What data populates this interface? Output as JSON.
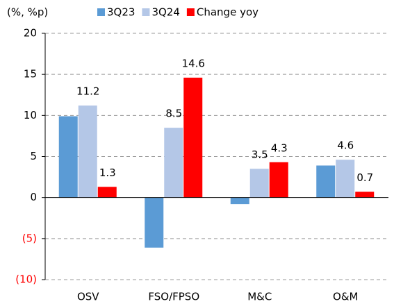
{
  "chart_data": {
    "type": "bar",
    "y_label": "(%, %p)",
    "categories": [
      "OSV",
      "FSO/FPSO",
      "M&C",
      "O&M"
    ],
    "series": [
      {
        "name": "3Q23",
        "color": "#5b9bd5",
        "values": [
          9.9,
          -6.1,
          -0.8,
          3.9
        ],
        "data_labels": false
      },
      {
        "name": "3Q24",
        "color": "#b4c7e7",
        "values": [
          11.2,
          8.5,
          3.5,
          4.6
        ],
        "data_labels": true
      },
      {
        "name": "Change yoy",
        "color": "#ff0000",
        "values": [
          1.3,
          14.6,
          4.3,
          0.7
        ],
        "data_labels": true
      }
    ],
    "ylim": [
      -10,
      20
    ],
    "yticks": [
      {
        "value": -10,
        "label": "(10)"
      },
      {
        "value": -5,
        "label": "(5)"
      },
      0,
      5,
      10,
      15,
      20
    ],
    "negative_tick_color": "#ff0000",
    "grid": true,
    "legend": "top"
  }
}
